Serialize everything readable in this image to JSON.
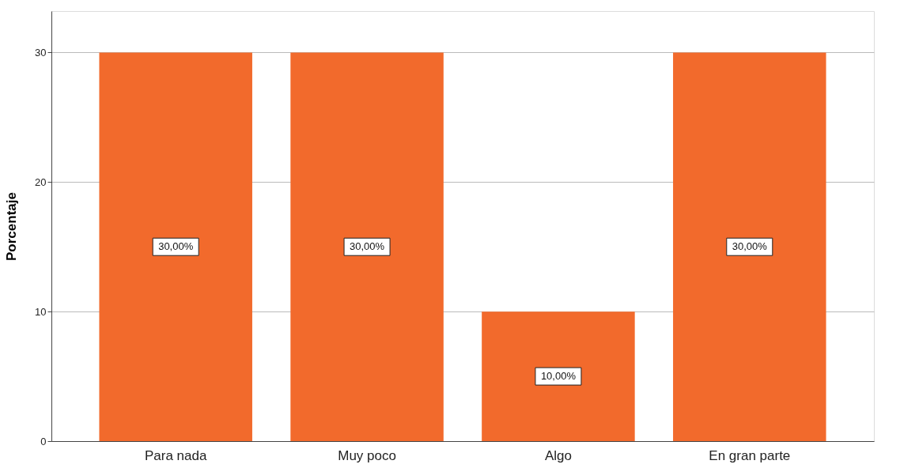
{
  "chart_data": {
    "type": "bar",
    "ylabel": "Porcentaje",
    "categories": [
      "Para nada",
      "Muy poco",
      "Algo",
      "En gran parte"
    ],
    "values": [
      30,
      30,
      10,
      30
    ],
    "value_labels": [
      "30,00%",
      "30,00%",
      "10,00%",
      "30,00%"
    ],
    "color": "#f26a2c",
    "ylim": [
      0,
      33.2
    ],
    "yticks": [
      0,
      10,
      20,
      30
    ],
    "grid": "y"
  }
}
